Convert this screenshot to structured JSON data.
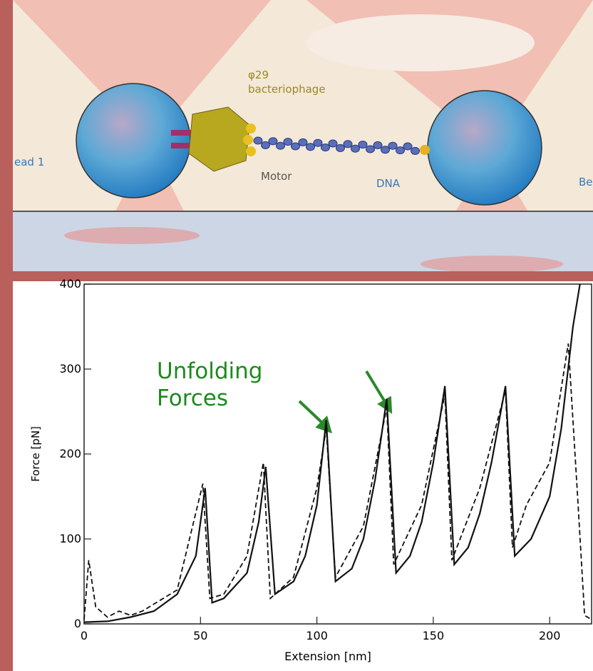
{
  "diagram": {
    "labels": {
      "phage": "φ29",
      "phage_name": "bacteriophage",
      "motor": "Motor",
      "dna": "DNA",
      "bead_left": "ead 1",
      "bead_right": "Be"
    }
  },
  "chart_data": {
    "type": "line",
    "annotation": [
      "Unfolding",
      "Forces"
    ],
    "xlabel": "Extension [nm]",
    "ylabel": "Force [pN]",
    "xlim": [
      0,
      218
    ],
    "ylim": [
      0,
      400
    ],
    "xticks": [
      0,
      50,
      100,
      150,
      200
    ],
    "yticks": [
      0,
      100,
      200,
      300,
      400
    ],
    "series": [
      {
        "color": "#111111",
        "style": "solid",
        "x": [
          0,
          10,
          20,
          30,
          40,
          48,
          52,
          55,
          60,
          70,
          75,
          78,
          82,
          90,
          95,
          100,
          104,
          108,
          115,
          120,
          125,
          130,
          134,
          140,
          145,
          150,
          155,
          159,
          165,
          170,
          175,
          181,
          185,
          192,
          200,
          205,
          210,
          213
        ],
        "values": [
          2,
          3,
          8,
          15,
          35,
          80,
          160,
          25,
          30,
          60,
          120,
          185,
          35,
          50,
          80,
          140,
          240,
          50,
          65,
          100,
          170,
          265,
          60,
          80,
          120,
          190,
          280,
          70,
          90,
          130,
          190,
          280,
          80,
          100,
          150,
          230,
          350,
          400
        ]
      },
      {
        "color": "#111111",
        "style": "dashed",
        "x": [
          0,
          2,
          5,
          10,
          15,
          20,
          25,
          40,
          51,
          54,
          60,
          70,
          77,
          80,
          90,
          100,
          104,
          108,
          120,
          130,
          133,
          145,
          155,
          158,
          170,
          181,
          184,
          190,
          200,
          208,
          212,
          215,
          218
        ],
        "values": [
          5,
          75,
          20,
          8,
          15,
          10,
          15,
          40,
          165,
          30,
          35,
          80,
          190,
          30,
          55,
          160,
          230,
          55,
          115,
          255,
          70,
          140,
          270,
          75,
          160,
          275,
          90,
          140,
          190,
          330,
          150,
          10,
          5
        ]
      }
    ]
  }
}
